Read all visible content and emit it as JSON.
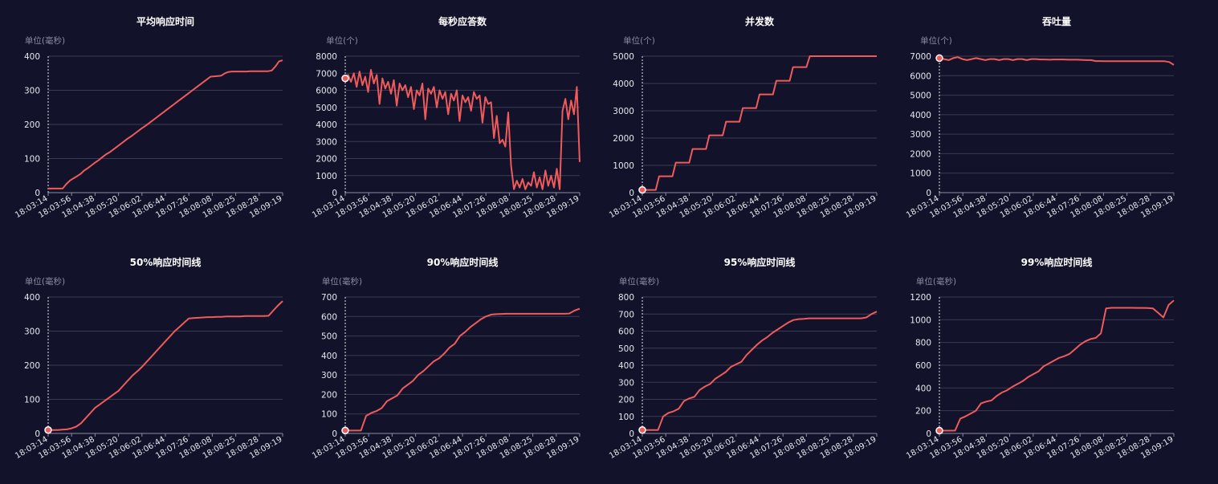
{
  "theme": {
    "background": "#12122a",
    "series_color": "#ef5b5b",
    "grid_color": "#3a3d52",
    "text_color": "#e6e8ef",
    "unit_color": "#8b8fa3"
  },
  "chart_data": [
    {
      "type": "line",
      "title": "平均响应时间",
      "unit": "单位(毫秒)",
      "xticks": [
        "18:03:14",
        "18:03:56",
        "18:04:38",
        "18:05:20",
        "18:06:02",
        "18:06:44",
        "18:07:26",
        "18:08:08",
        "18:08:25",
        "18:08:28",
        "18:09:19"
      ],
      "ylim": [
        0,
        400
      ],
      "yticks": [
        0,
        100,
        200,
        300,
        400
      ],
      "marker_at_start": false,
      "series": [
        {
          "values": [
            12,
            12,
            12,
            12,
            12,
            25,
            35,
            42,
            48,
            55,
            65,
            72,
            80,
            88,
            95,
            104,
            112,
            118,
            126,
            134,
            142,
            150,
            158,
            165,
            173,
            181,
            189,
            196,
            204,
            212,
            220,
            228,
            236,
            244,
            252,
            260,
            268,
            276,
            284,
            292,
            300,
            308,
            316,
            324,
            332,
            340,
            341,
            342,
            343,
            350,
            354,
            355,
            355,
            355,
            355,
            355,
            356,
            356,
            356,
            356,
            356,
            356,
            358,
            370,
            385,
            388
          ]
        }
      ]
    },
    {
      "type": "line",
      "title": "每秒应答数",
      "unit": "单位(个)",
      "xticks": [
        "18:03:14",
        "18:03:56",
        "18:04:38",
        "18:05:20",
        "18:06:02",
        "18:06:44",
        "18:07:26",
        "18:08:08",
        "18:08:25",
        "18:08:28",
        "18:09:19"
      ],
      "ylim": [
        0,
        8000
      ],
      "yticks": [
        0,
        1000,
        2000,
        3000,
        4000,
        5000,
        6000,
        7000,
        8000
      ],
      "marker_at_start": true,
      "series": [
        {
          "values": [
            6700,
            6900,
            6500,
            7000,
            6200,
            7100,
            6300,
            6800,
            5900,
            7200,
            6400,
            6900,
            5200,
            6700,
            6100,
            6500,
            5800,
            6600,
            5100,
            6400,
            6000,
            6300,
            5600,
            6200,
            4900,
            6000,
            5700,
            6400,
            4300,
            6100,
            5800,
            6200,
            5000,
            6000,
            5500,
            5900,
            4600,
            5800,
            5400,
            6000,
            4200,
            5700,
            5300,
            5600,
            4800,
            5900,
            5500,
            5700,
            4100,
            5600,
            5200,
            5300,
            3200,
            4500,
            2900,
            3100,
            2700,
            4700,
            1600,
            200,
            700,
            300,
            800,
            200,
            600,
            400,
            1200,
            300,
            900,
            200,
            1300,
            400,
            1000,
            300,
            1400,
            200,
            4800,
            5500,
            4300,
            5400,
            4600,
            6200,
            1800
          ]
        }
      ]
    },
    {
      "type": "line",
      "title": "并发数",
      "unit": "单位(个)",
      "xticks": [
        "18:03:14",
        "18:03:56",
        "18:04:38",
        "18:05:20",
        "18:06:02",
        "18:06:44",
        "18:07:26",
        "18:08:08",
        "18:08:25",
        "18:08:28",
        "18:09:19"
      ],
      "ylim": [
        0,
        5000
      ],
      "yticks": [
        0,
        1000,
        2000,
        3000,
        4000,
        5000
      ],
      "marker_at_start": true,
      "series": [
        {
          "values": [
            100,
            100,
            100,
            100,
            100,
            600,
            600,
            600,
            600,
            600,
            1100,
            1100,
            1100,
            1100,
            1100,
            1600,
            1600,
            1600,
            1600,
            1600,
            2100,
            2100,
            2100,
            2100,
            2100,
            2600,
            2600,
            2600,
            2600,
            2600,
            3100,
            3100,
            3100,
            3100,
            3100,
            3600,
            3600,
            3600,
            3600,
            3600,
            4100,
            4100,
            4100,
            4100,
            4100,
            4600,
            4600,
            4600,
            4600,
            4600,
            5000,
            5000,
            5000,
            5000,
            5000,
            5000,
            5000,
            5000,
            5000,
            5000,
            5000,
            5000,
            5000,
            5000,
            5000,
            5000,
            5000,
            5000,
            5000,
            5000,
            5000
          ]
        }
      ]
    },
    {
      "type": "line",
      "title": "吞吐量",
      "unit": "单位(个)",
      "xticks": [
        "18:03:14",
        "18:03:56",
        "18:04:38",
        "18:05:20",
        "18:06:02",
        "18:06:44",
        "18:07:26",
        "18:08:08",
        "18:08:25",
        "18:08:28",
        "18:09:19"
      ],
      "ylim": [
        0,
        7000
      ],
      "yticks": [
        0,
        1000,
        2000,
        3000,
        4000,
        5000,
        6000,
        7000
      ],
      "marker_at_start": true,
      "series": [
        {
          "values": [
            6900,
            6850,
            6800,
            6900,
            6950,
            6850,
            6800,
            6850,
            6900,
            6850,
            6800,
            6850,
            6850,
            6800,
            6850,
            6850,
            6800,
            6850,
            6850,
            6800,
            6850,
            6850,
            6830,
            6830,
            6820,
            6830,
            6830,
            6830,
            6820,
            6820,
            6820,
            6810,
            6800,
            6800,
            6750,
            6750,
            6740,
            6740,
            6740,
            6740,
            6740,
            6740,
            6740,
            6740,
            6740,
            6740,
            6740,
            6740,
            6740,
            6740,
            6700,
            6550
          ]
        }
      ]
    },
    {
      "type": "line",
      "title": "50%响应时间线",
      "unit": "单位(毫秒)",
      "xticks": [
        "18:03:14",
        "18:03:56",
        "18:04:38",
        "18:05:20",
        "18:06:02",
        "18:06:44",
        "18:07:26",
        "18:08:08",
        "18:08:25",
        "18:08:28",
        "18:09:19"
      ],
      "ylim": [
        0,
        400
      ],
      "yticks": [
        0,
        100,
        200,
        300,
        400
      ],
      "marker_at_start": true,
      "series": [
        {
          "values": [
            10,
            10,
            10,
            11,
            12,
            15,
            20,
            30,
            45,
            60,
            75,
            85,
            95,
            105,
            115,
            125,
            140,
            155,
            170,
            182,
            195,
            210,
            225,
            240,
            255,
            270,
            285,
            300,
            312,
            325,
            337,
            338,
            339,
            340,
            341,
            341,
            342,
            342,
            343,
            343,
            343,
            343,
            344,
            344,
            344,
            344,
            344,
            345,
            360,
            375,
            388
          ]
        }
      ]
    },
    {
      "type": "line",
      "title": "90%响应时间线",
      "unit": "单位(毫秒)",
      "xticks": [
        "18:03:14",
        "18:03:56",
        "18:04:38",
        "18:05:20",
        "18:06:02",
        "18:06:44",
        "18:07:26",
        "18:08:08",
        "18:08:25",
        "18:08:28",
        "18:09:19"
      ],
      "ylim": [
        0,
        700
      ],
      "yticks": [
        0,
        100,
        200,
        300,
        400,
        500,
        600,
        700
      ],
      "marker_at_start": true,
      "series": [
        {
          "values": [
            15,
            15,
            15,
            15,
            90,
            105,
            115,
            130,
            165,
            180,
            195,
            230,
            250,
            270,
            300,
            320,
            345,
            370,
            385,
            410,
            440,
            460,
            500,
            520,
            545,
            565,
            585,
            600,
            610,
            612,
            613,
            614,
            614,
            614,
            614,
            614,
            614,
            614,
            614,
            614,
            614,
            614,
            614,
            615,
            630,
            640
          ]
        }
      ]
    },
    {
      "type": "line",
      "title": "95%响应时间线",
      "unit": "单位(毫秒)",
      "xticks": [
        "18:03:14",
        "18:03:56",
        "18:04:38",
        "18:05:20",
        "18:06:02",
        "18:06:44",
        "18:07:26",
        "18:08:08",
        "18:08:25",
        "18:08:28",
        "18:09:19"
      ],
      "ylim": [
        0,
        800
      ],
      "yticks": [
        0,
        100,
        200,
        300,
        400,
        500,
        600,
        700,
        800
      ],
      "marker_at_start": true,
      "series": [
        {
          "values": [
            20,
            20,
            20,
            20,
            100,
            120,
            130,
            145,
            190,
            205,
            215,
            255,
            275,
            290,
            320,
            340,
            360,
            390,
            405,
            420,
            460,
            490,
            520,
            545,
            565,
            590,
            610,
            630,
            650,
            665,
            670,
            672,
            675,
            675,
            675,
            675,
            675,
            675,
            675,
            675,
            675,
            675,
            675,
            680,
            700,
            715
          ]
        }
      ]
    },
    {
      "type": "line",
      "title": "99%响应时间线",
      "unit": "单位(毫秒)",
      "xticks": [
        "18:03:14",
        "18:03:56",
        "18:04:38",
        "18:05:20",
        "18:06:02",
        "18:06:44",
        "18:07:26",
        "18:08:08",
        "18:08:25",
        "18:08:28",
        "18:09:19"
      ],
      "ylim": [
        0,
        1200
      ],
      "yticks": [
        0,
        200,
        400,
        600,
        800,
        1000,
        1200
      ],
      "marker_at_start": true,
      "series": [
        {
          "values": [
            25,
            25,
            25,
            25,
            130,
            150,
            175,
            200,
            265,
            280,
            290,
            330,
            360,
            380,
            410,
            435,
            460,
            495,
            520,
            545,
            590,
            615,
            640,
            665,
            680,
            700,
            740,
            780,
            810,
            830,
            840,
            880,
            1100,
            1105,
            1105,
            1105,
            1105,
            1105,
            1104,
            1104,
            1103,
            1100,
            1060,
            1020,
            1130,
            1170
          ]
        }
      ]
    }
  ]
}
